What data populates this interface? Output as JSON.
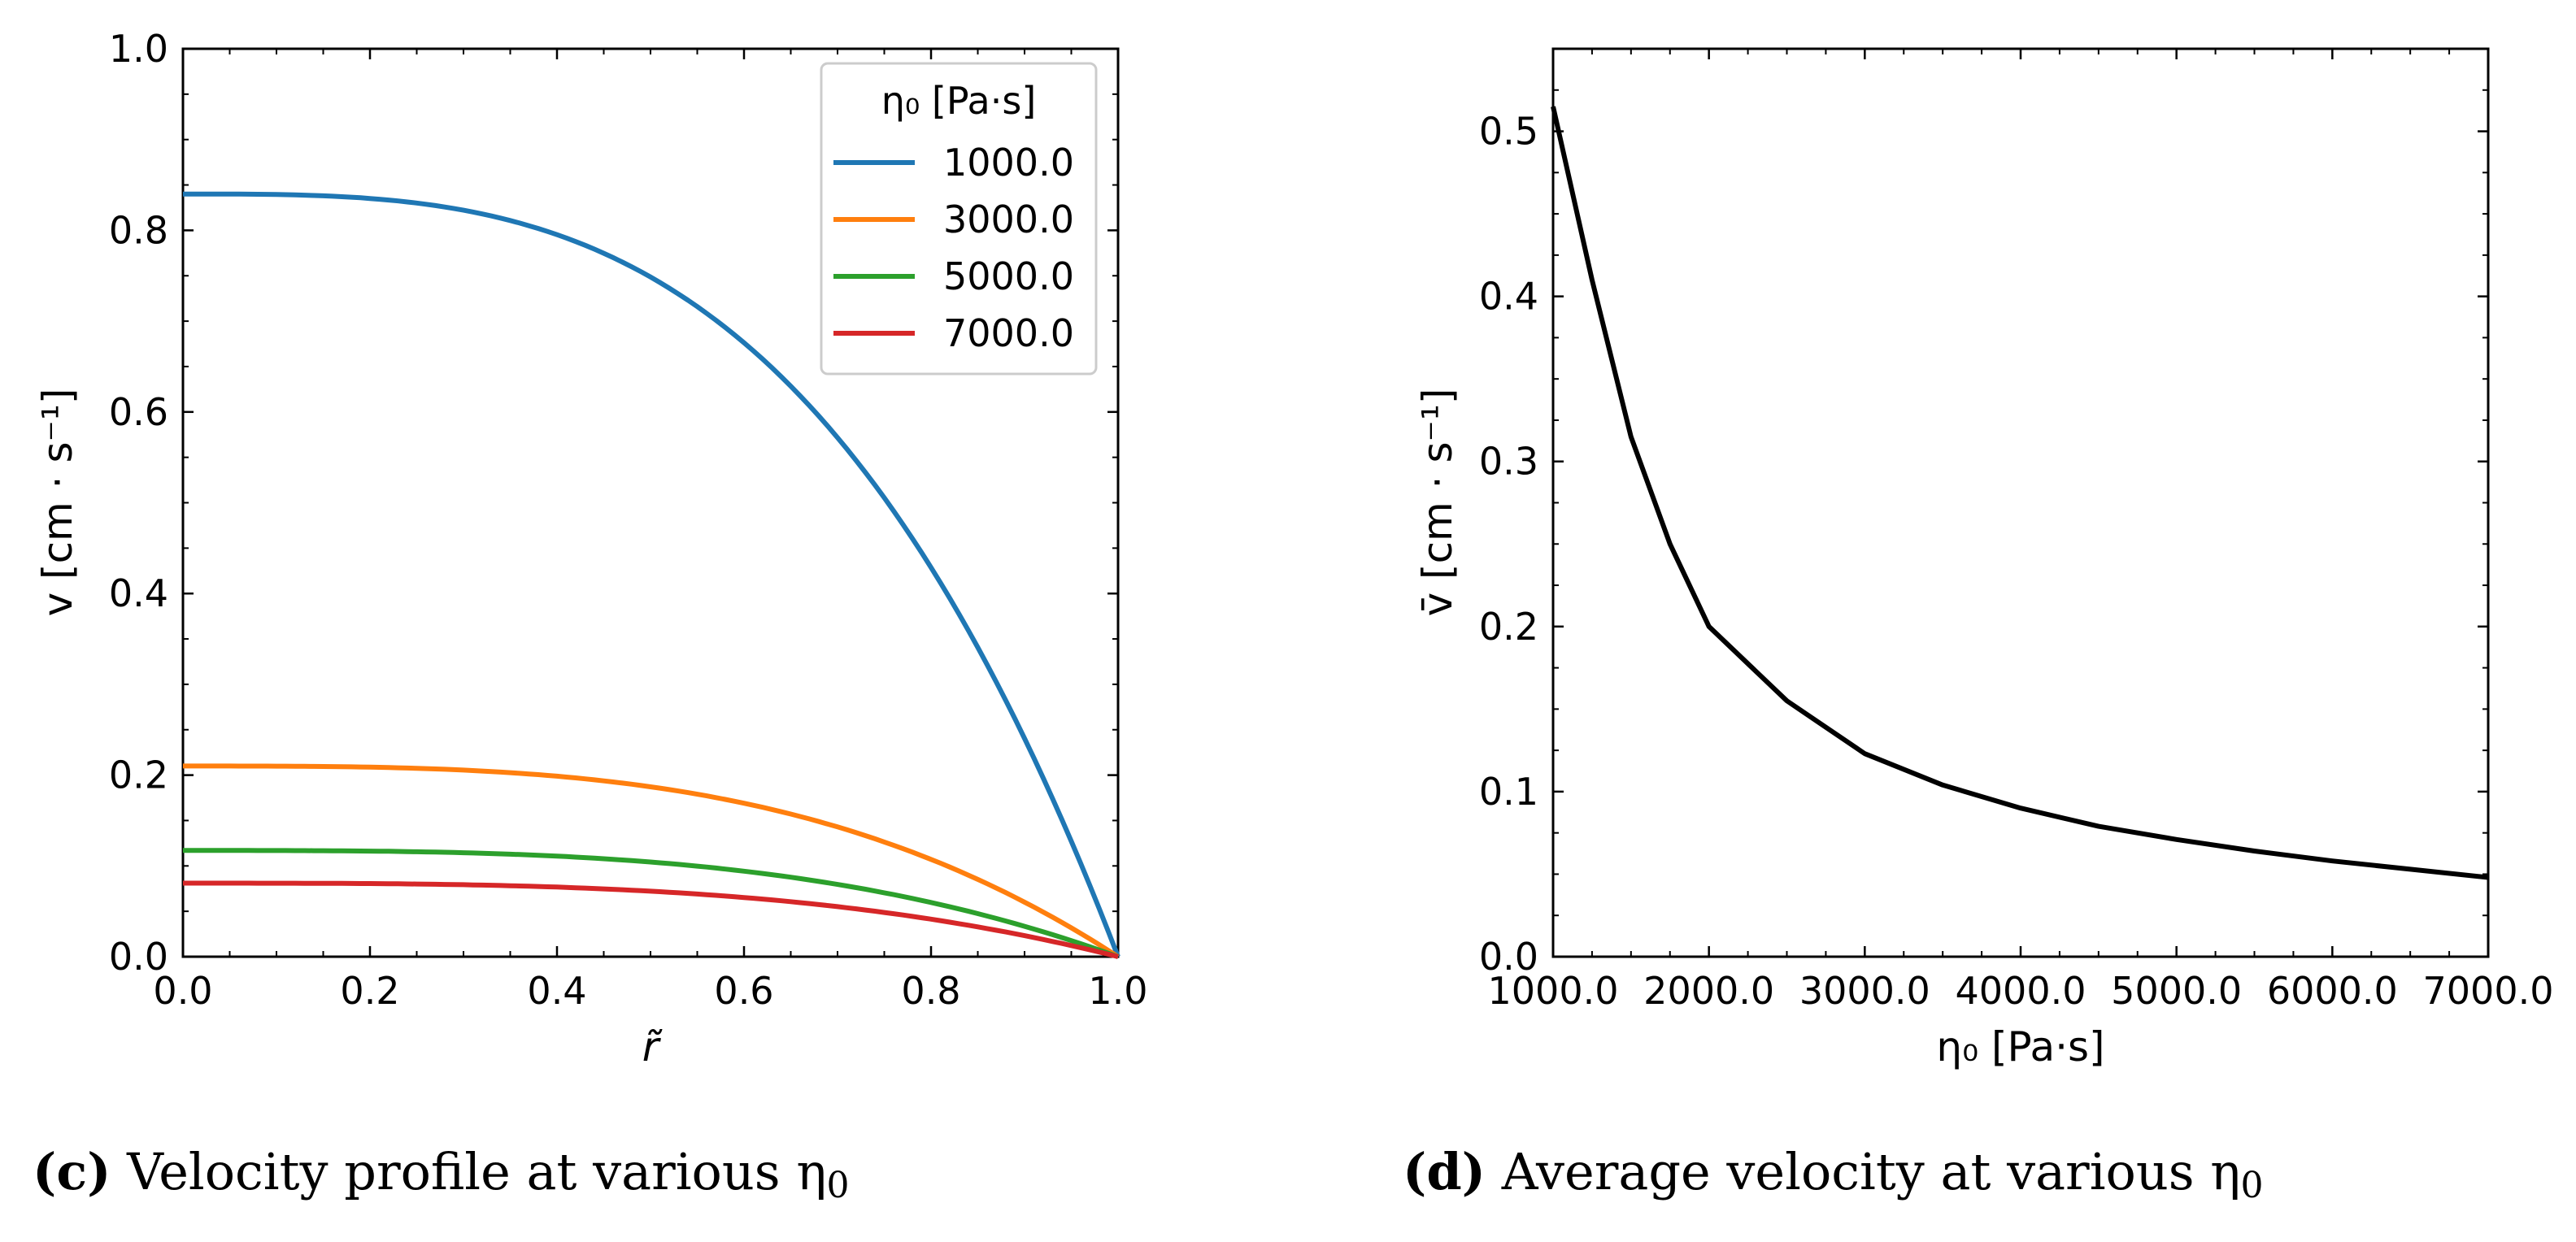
{
  "chart_data": [
    {
      "type": "line",
      "xlabel": "r̃",
      "ylabel": "v [cm · s⁻¹]",
      "xlim": [
        0.0,
        1.0
      ],
      "ylim": [
        0.0,
        1.0
      ],
      "xticks": [
        "0.0",
        "0.2",
        "0.4",
        "0.6",
        "0.8",
        "1.0"
      ],
      "yticks": [
        "0.0",
        "0.2",
        "0.4",
        "0.6",
        "0.8",
        "1.0"
      ],
      "legend_title": "η₀ [Pa·s]",
      "legend_position": "top-right",
      "series": [
        {
          "name": "1000.0",
          "color": "#1f77b4",
          "center_value": 0.84
        },
        {
          "name": "3000.0",
          "color": "#ff7f0e",
          "center_value": 0.21
        },
        {
          "name": "5000.0",
          "color": "#2ca02c",
          "center_value": 0.117
        },
        {
          "name": "7000.0",
          "color": "#d62728",
          "center_value": 0.081
        }
      ],
      "profile_exponent": 3.2,
      "caption": {
        "label": "(c)",
        "text": " Velocity profile at various η",
        "sub": "0"
      }
    },
    {
      "type": "line",
      "xlabel": "η₀ [Pa·s]",
      "ylabel": "v̄ [cm · s⁻¹]",
      "xlim": [
        1000.0,
        7000.0
      ],
      "ylim": [
        0.0,
        0.55
      ],
      "xticks": [
        "1000.0",
        "2000.0",
        "3000.0",
        "4000.0",
        "5000.0",
        "6000.0",
        "7000.0"
      ],
      "yticks": [
        "0.0",
        "0.1",
        "0.2",
        "0.3",
        "0.4",
        "0.5"
      ],
      "series": [
        {
          "name": "average velocity",
          "color": "#000000",
          "x": [
            1000,
            1250,
            1500,
            1750,
            2000,
            2500,
            3000,
            3500,
            4000,
            4500,
            5000,
            5500,
            6000,
            6500,
            7000
          ],
          "y": [
            0.515,
            0.41,
            0.315,
            0.25,
            0.2,
            0.155,
            0.123,
            0.104,
            0.09,
            0.079,
            0.071,
            0.064,
            0.058,
            0.053,
            0.048
          ]
        }
      ],
      "caption": {
        "label": "(d)",
        "text": " Average velocity at various η",
        "sub": "0"
      }
    }
  ]
}
